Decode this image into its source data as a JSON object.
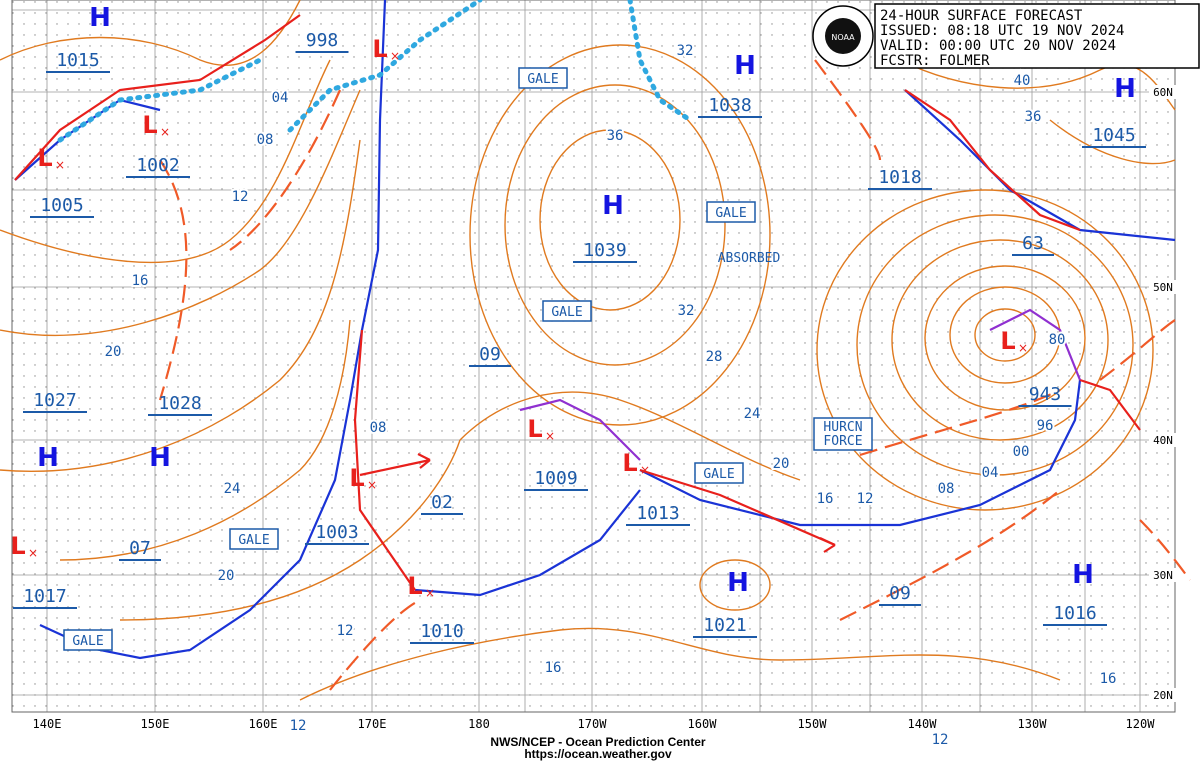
{
  "header": {
    "logo": "NOAA",
    "lines": [
      "24-HOUR SURFACE FORECAST",
      "ISSUED: 08:18 UTC 19 NOV 2024",
      "VALID:  00:00 UTC 20 NOV 2024",
      "FCSTR:  FOLMER"
    ]
  },
  "centers": [
    {
      "symbol": "H",
      "pressure": "1015"
    },
    {
      "symbol": "H",
      "pressure": "1038"
    },
    {
      "symbol": "H",
      "pressure": "1039"
    },
    {
      "symbol": "H",
      "pressure": "1045"
    },
    {
      "symbol": "H",
      "pressure": "1027"
    },
    {
      "symbol": "H",
      "pressure": "1028"
    },
    {
      "symbol": "H",
      "pressure": "1021"
    },
    {
      "symbol": "H",
      "pressure": "1016"
    },
    {
      "symbol": "L",
      "pressure": "998"
    },
    {
      "symbol": "L",
      "pressure": "1002"
    },
    {
      "symbol": "L",
      "pressure": "1005"
    },
    {
      "symbol": "L",
      "pressure": "1009"
    },
    {
      "symbol": "L",
      "pressure": "1013"
    },
    {
      "symbol": "L",
      "pressure": "02"
    },
    {
      "symbol": "L",
      "pressure": "07"
    },
    {
      "symbol": "L",
      "pressure": "943"
    },
    {
      "symbol": "L",
      "pressure": "1010"
    }
  ],
  "pressure_labels": [
    "1003",
    "1017",
    "1018",
    "09",
    "63",
    "09"
  ],
  "isobar_labels": [
    "32",
    "36",
    "32",
    "28",
    "24",
    "20",
    "16",
    "12",
    "08",
    "04",
    "00",
    "96",
    "80",
    "40",
    "36",
    "04",
    "08",
    "12",
    "16",
    "20",
    "24",
    "20",
    "12",
    "16",
    "16",
    "08",
    "12",
    "12"
  ],
  "gale_labels": [
    "GALE",
    "GALE",
    "GALE",
    "GALE",
    "GALE",
    "GALE"
  ],
  "notes": [
    "ABSORBED",
    "HURCN",
    "FORCE"
  ],
  "latitudes": [
    "60N",
    "50N",
    "40N",
    "30N",
    "20N"
  ],
  "longitudes": [
    "140E",
    "150E",
    "160E",
    "170E",
    "180",
    "170W",
    "160W",
    "150W",
    "140W",
    "130W",
    "120W"
  ],
  "footer": [
    "NWS/NCEP - Ocean Prediction Center",
    "https://ocean.weather.gov"
  ]
}
